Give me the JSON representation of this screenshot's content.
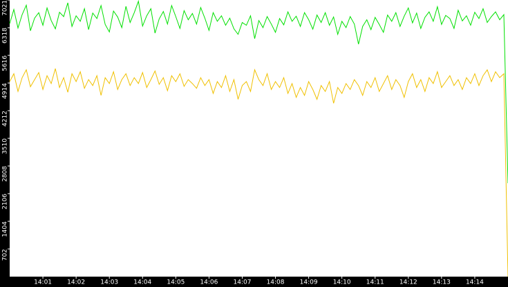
{
  "chart_data": {
    "type": "line",
    "x": [
      0,
      0.125,
      0.25,
      0.375,
      0.5,
      0.625,
      0.75,
      0.875,
      1,
      1.125,
      1.25,
      1.375,
      1.5,
      1.625,
      1.75,
      1.875,
      2,
      2.125,
      2.25,
      2.375,
      2.5,
      2.625,
      2.75,
      2.875,
      3,
      3.125,
      3.25,
      3.375,
      3.5,
      3.625,
      3.75,
      3.875,
      4,
      4.125,
      4.25,
      4.375,
      4.5,
      4.625,
      4.75,
      4.875,
      5,
      5.125,
      5.25,
      5.375,
      5.5,
      5.625,
      5.75,
      5.875,
      6,
      6.125,
      6.25,
      6.375,
      6.5,
      6.625,
      6.75,
      6.875,
      7,
      7.125,
      7.25,
      7.375,
      7.5,
      7.625,
      7.75,
      7.875,
      8,
      8.125,
      8.25,
      8.375,
      8.5,
      8.625,
      8.75,
      8.875,
      9,
      9.125,
      9.25,
      9.375,
      9.5,
      9.625,
      9.75,
      9.875,
      10,
      10.125,
      10.25,
      10.375,
      10.5,
      10.625,
      10.75,
      10.875,
      11,
      11.125,
      11.25,
      11.375,
      11.5,
      11.625,
      11.75,
      11.875,
      12,
      12.125,
      12.25,
      12.375,
      12.5,
      12.625,
      12.75,
      12.875,
      13,
      13.125,
      13.25,
      13.375,
      13.5,
      13.625,
      13.75,
      13.875,
      14,
      14.125,
      14.25,
      14.375,
      14.5,
      14.625,
      14.75,
      14.875,
      15
    ],
    "series": [
      {
        "color": "#00e000",
        "values": [
          6420,
          6780,
          6310,
          6650,
          6890,
          6240,
          6560,
          6700,
          6380,
          6820,
          6500,
          6290,
          6710,
          6600,
          6950,
          6350,
          6620,
          6480,
          6800,
          6270,
          6690,
          6550,
          6880,
          6400,
          6210,
          6740,
          6590,
          6320,
          6860,
          6450,
          6700,
          6990,
          6360,
          6620,
          6800,
          6180,
          6540,
          6730,
          6410,
          6880,
          6600,
          6300,
          6750,
          6520,
          6680,
          6410,
          6830,
          6560,
          6250,
          6700,
          6480,
          6620,
          6380,
          6560,
          6290,
          6150,
          6450,
          6380,
          6620,
          6040,
          6500,
          6320,
          6600,
          6410,
          6200,
          6550,
          6390,
          6720,
          6480,
          6610,
          6350,
          6700,
          6520,
          6280,
          6640,
          6450,
          6700,
          6380,
          6590,
          6150,
          6480,
          6320,
          6600,
          6410,
          5900,
          6350,
          6520,
          6270,
          6580,
          6400,
          6200,
          6640,
          6480,
          6700,
          6350,
          6610,
          6820,
          6440,
          6690,
          6300,
          6580,
          6720,
          6480,
          6850,
          6400,
          6630,
          6550,
          6300,
          6760,
          6490,
          6620,
          6380,
          6710,
          6550,
          6800,
          6450,
          6600,
          6720,
          6520,
          6650,
          2370
        ]
      },
      {
        "color": "#f0c000",
        "values": [
          4950,
          5150,
          4700,
          5050,
          5250,
          4820,
          5000,
          5180,
          4750,
          5100,
          4900,
          5280,
          4800,
          5050,
          4680,
          5150,
          4950,
          5200,
          4780,
          5000,
          4850,
          5100,
          4600,
          5050,
          4900,
          5200,
          4750,
          5000,
          5150,
          4850,
          5050,
          4900,
          5180,
          4800,
          5000,
          5220,
          4880,
          5050,
          4720,
          5100,
          4950,
          5150,
          4830,
          5000,
          4900,
          4780,
          5050,
          4850,
          5000,
          4650,
          4950,
          4800,
          5100,
          4700,
          5000,
          4500,
          4850,
          4950,
          4700,
          5250,
          5000,
          4850,
          5150,
          4750,
          4950,
          4800,
          5050,
          4650,
          4900,
          4550,
          4800,
          4600,
          4950,
          4750,
          4500,
          4850,
          4700,
          4950,
          4400,
          4800,
          4650,
          4900,
          4750,
          5000,
          4850,
          4600,
          4950,
          4800,
          5050,
          4700,
          4900,
          5100,
          4750,
          5000,
          4850,
          4550,
          4950,
          5150,
          4800,
          5000,
          4700,
          5050,
          4900,
          5200,
          4800,
          4950,
          5100,
          4850,
          5000,
          4750,
          5050,
          4900,
          5150,
          4850,
          5100,
          5250,
          4950,
          5200,
          5050,
          5150,
          0
        ]
      }
    ],
    "xlim": [
      0,
      15
    ],
    "xticks": [
      {
        "value": 1,
        "label": "14:01"
      },
      {
        "value": 2,
        "label": "14:02"
      },
      {
        "value": 3,
        "label": "14:03"
      },
      {
        "value": 4,
        "label": "14:04"
      },
      {
        "value": 5,
        "label": "14:05"
      },
      {
        "value": 6,
        "label": "14:06"
      },
      {
        "value": 7,
        "label": "14:07"
      },
      {
        "value": 8,
        "label": "14:08"
      },
      {
        "value": 9,
        "label": "14:09"
      },
      {
        "value": 10,
        "label": "14:10"
      },
      {
        "value": 11,
        "label": "14:11"
      },
      {
        "value": 12,
        "label": "14:12"
      },
      {
        "value": 13,
        "label": "14:13"
      },
      {
        "value": 14,
        "label": "14:14"
      }
    ],
    "ylim": [
      0,
      7021
    ],
    "yticks": [
      702,
      1404,
      2106,
      2808,
      3510,
      4212,
      4914,
      5616,
      6318,
      7021
    ]
  }
}
